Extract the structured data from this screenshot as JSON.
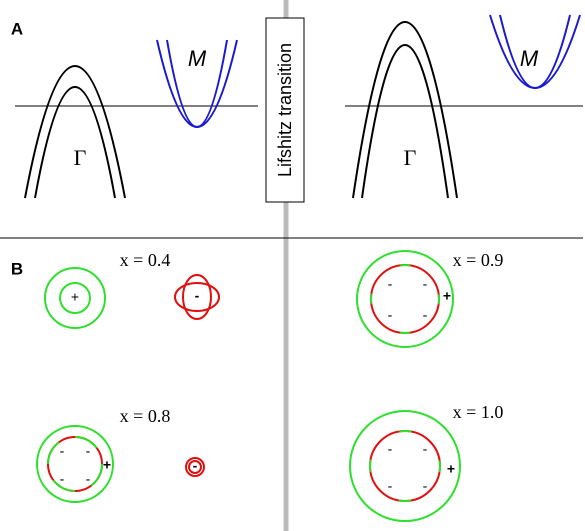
{
  "panel_a": {
    "label": "A",
    "gamma_labels": [
      "Γ",
      "Γ"
    ],
    "m_labels": [
      "M",
      "M"
    ],
    "transition": "Lifshitz transition"
  },
  "panel_b": {
    "label": "B",
    "plots": [
      {
        "x_label": "x = 0.4",
        "signs": [
          "+",
          "-"
        ]
      },
      {
        "x_label": "x = 0.9",
        "signs": [
          "-",
          "-",
          "-",
          "-",
          "+"
        ]
      },
      {
        "x_label": "x = 0.8",
        "signs": [
          "-",
          "-",
          "-",
          "-",
          "+",
          "-"
        ]
      },
      {
        "x_label": "x = 1.0",
        "signs": [
          "-",
          "-",
          "-",
          "-",
          "+"
        ]
      }
    ]
  }
}
